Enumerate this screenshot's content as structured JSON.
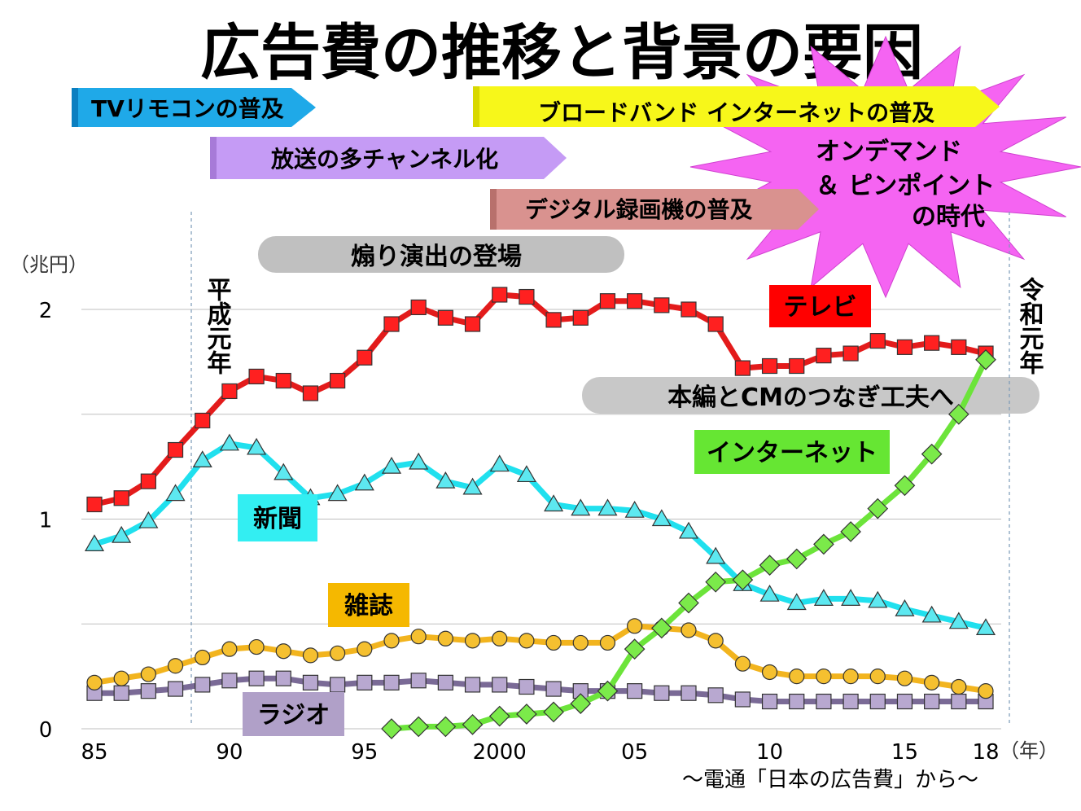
{
  "title": "広告費の推移と背景の要因",
  "y_unit": "（兆円）",
  "x_unit": "（年）",
  "source": "～電通「日本の広告費」から～",
  "markers": [
    {
      "year": 1989,
      "text": "平成元年"
    },
    {
      "year": 2019,
      "text": "令和元年"
    }
  ],
  "banners": [
    {
      "text": "TVリモコンの普及",
      "color": "#1fa9e8"
    },
    {
      "text": "放送の多チャンネル化",
      "color": "#c59bf5"
    },
    {
      "text": "ブロードバンド インターネットの普及",
      "color": "#f7f71a"
    },
    {
      "text": "デジタル録画機の普及",
      "color": "#d9928f"
    },
    {
      "text": "煽り演出の登場",
      "color": "#c0c0c0"
    },
    {
      "text": "本編とCMのつなぎ工夫へ",
      "color": "#c0c0c0"
    }
  ],
  "starburst": {
    "lines": [
      "オンデマンド",
      "＆ ピンポイント",
      "の時代"
    ],
    "color": "#f564f2"
  },
  "chart_data": {
    "type": "line",
    "title": "広告費の推移と背景の要因",
    "xlabel": "（年）",
    "ylabel": "（兆円）",
    "ylim": [
      0,
      2
    ],
    "yticks": [
      "0",
      "1",
      "2"
    ],
    "xticks": [
      {
        "year": 1985,
        "label": "85"
      },
      {
        "year": 1990,
        "label": "90"
      },
      {
        "year": 1995,
        "label": "95"
      },
      {
        "year": 2000,
        "label": "2000"
      },
      {
        "year": 2005,
        "label": "05"
      },
      {
        "year": 2010,
        "label": "10"
      },
      {
        "year": 2015,
        "label": "15"
      },
      {
        "year": 2018,
        "label": "18"
      }
    ],
    "grid": true,
    "series": [
      {
        "name": "テレビ",
        "color": "#e31b1b",
        "marker": "square",
        "label_color": "#ff0000",
        "x": [
          1985,
          1986,
          1987,
          1988,
          1989,
          1990,
          1991,
          1992,
          1993,
          1994,
          1995,
          1996,
          1997,
          1998,
          1999,
          2000,
          2001,
          2002,
          2003,
          2004,
          2005,
          2006,
          2007,
          2008,
          2009,
          2010,
          2011,
          2012,
          2013,
          2014,
          2015,
          2016,
          2017,
          2018
        ],
        "values": [
          1.07,
          1.1,
          1.18,
          1.33,
          1.47,
          1.61,
          1.68,
          1.66,
          1.6,
          1.66,
          1.77,
          1.93,
          2.01,
          1.96,
          1.93,
          2.07,
          2.06,
          1.95,
          1.96,
          2.04,
          2.04,
          2.02,
          2.0,
          1.93,
          1.72,
          1.73,
          1.73,
          1.78,
          1.79,
          1.85,
          1.82,
          1.84,
          1.82,
          1.79
        ]
      },
      {
        "name": "新聞",
        "color": "#20e0ee",
        "marker": "triangle",
        "label_color": "#33eef2",
        "x": [
          1985,
          1986,
          1987,
          1988,
          1989,
          1990,
          1991,
          1992,
          1993,
          1994,
          1995,
          1996,
          1997,
          1998,
          1999,
          2000,
          2001,
          2002,
          2003,
          2004,
          2005,
          2006,
          2007,
          2008,
          2009,
          2010,
          2011,
          2012,
          2013,
          2014,
          2015,
          2016,
          2017,
          2018
        ],
        "values": [
          0.88,
          0.92,
          0.99,
          1.12,
          1.28,
          1.36,
          1.34,
          1.22,
          1.1,
          1.12,
          1.17,
          1.25,
          1.27,
          1.18,
          1.15,
          1.26,
          1.21,
          1.07,
          1.05,
          1.05,
          1.04,
          1.0,
          0.94,
          0.82,
          0.69,
          0.64,
          0.6,
          0.62,
          0.62,
          0.61,
          0.57,
          0.54,
          0.51,
          0.48
        ]
      },
      {
        "name": "雑誌",
        "color": "#f2b41e",
        "marker": "circle",
        "label_color": "#f5b800",
        "x": [
          1985,
          1986,
          1987,
          1988,
          1989,
          1990,
          1991,
          1992,
          1993,
          1994,
          1995,
          1996,
          1997,
          1998,
          1999,
          2000,
          2001,
          2002,
          2003,
          2004,
          2005,
          2006,
          2007,
          2008,
          2009,
          2010,
          2011,
          2012,
          2013,
          2014,
          2015,
          2016,
          2017,
          2018
        ],
        "values": [
          0.22,
          0.24,
          0.26,
          0.3,
          0.34,
          0.38,
          0.39,
          0.37,
          0.35,
          0.36,
          0.38,
          0.42,
          0.44,
          0.43,
          0.42,
          0.43,
          0.42,
          0.41,
          0.41,
          0.41,
          0.49,
          0.48,
          0.47,
          0.42,
          0.31,
          0.27,
          0.25,
          0.25,
          0.25,
          0.25,
          0.24,
          0.22,
          0.2,
          0.18
        ]
      },
      {
        "name": "ラジオ",
        "color": "#7a6a96",
        "marker": "square",
        "label_color": "#b0a0c8",
        "x": [
          1985,
          1986,
          1987,
          1988,
          1989,
          1990,
          1991,
          1992,
          1993,
          1994,
          1995,
          1996,
          1997,
          1998,
          1999,
          2000,
          2001,
          2002,
          2003,
          2004,
          2005,
          2006,
          2007,
          2008,
          2009,
          2010,
          2011,
          2012,
          2013,
          2014,
          2015,
          2016,
          2017,
          2018
        ],
        "values": [
          0.17,
          0.17,
          0.18,
          0.19,
          0.21,
          0.23,
          0.24,
          0.24,
          0.22,
          0.21,
          0.22,
          0.22,
          0.23,
          0.22,
          0.21,
          0.21,
          0.2,
          0.19,
          0.18,
          0.18,
          0.18,
          0.17,
          0.17,
          0.16,
          0.14,
          0.13,
          0.13,
          0.13,
          0.13,
          0.13,
          0.13,
          0.13,
          0.13,
          0.13
        ]
      },
      {
        "name": "インターネット",
        "color": "#6ce43a",
        "marker": "diamond",
        "label_color": "#66e633",
        "x": [
          1996,
          1997,
          1998,
          1999,
          2000,
          2001,
          2002,
          2003,
          2004,
          2005,
          2006,
          2007,
          2008,
          2009,
          2010,
          2011,
          2012,
          2013,
          2014,
          2015,
          2016,
          2017,
          2018
        ],
        "values": [
          0.0,
          0.01,
          0.01,
          0.02,
          0.06,
          0.07,
          0.08,
          0.12,
          0.18,
          0.38,
          0.48,
          0.6,
          0.7,
          0.71,
          0.78,
          0.81,
          0.88,
          0.94,
          1.05,
          1.16,
          1.31,
          1.5,
          1.76
        ]
      }
    ]
  }
}
